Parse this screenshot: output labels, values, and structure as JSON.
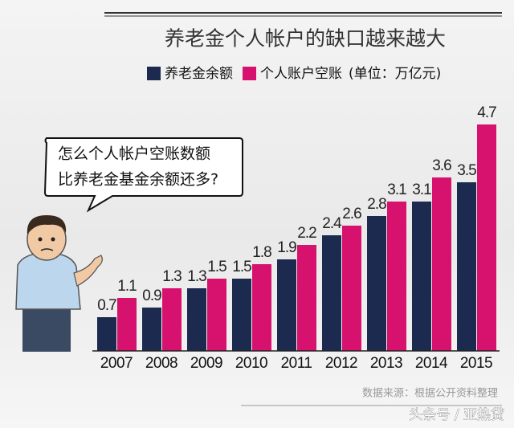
{
  "chart_data": {
    "type": "bar",
    "title": "养老金个人帐户的缺口越来越大",
    "unit": "(单位：万亿元)",
    "categories": [
      "2007",
      "2008",
      "2009",
      "2010",
      "2011",
      "2012",
      "2013",
      "2014",
      "2015"
    ],
    "series": [
      {
        "name": "养老金余额",
        "color": "#1b2a4e",
        "values": [
          0.7,
          0.9,
          1.3,
          1.5,
          1.9,
          2.4,
          2.8,
          3.1,
          3.5
        ]
      },
      {
        "name": "个人账户空账",
        "color": "#d6126e",
        "values": [
          1.1,
          1.3,
          1.5,
          1.8,
          2.2,
          2.6,
          3.1,
          3.6,
          4.7
        ]
      }
    ],
    "annotation": [
      "怎么个人帐户空账数额",
      "比养老金基金余额还多?"
    ],
    "source": "数据来源：根据公开资料整理",
    "watermark": "头条号 / 亚热贷"
  }
}
